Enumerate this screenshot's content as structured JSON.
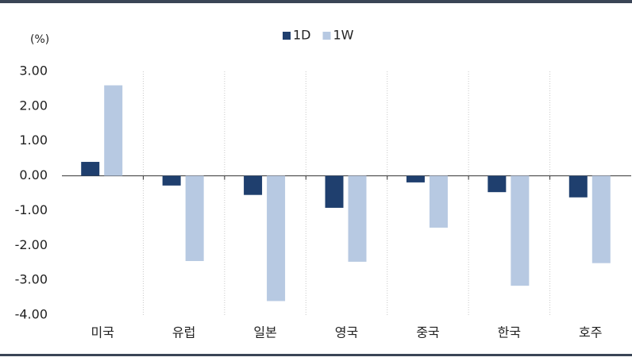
{
  "chart_data": {
    "type": "bar",
    "unit_label": "(%)",
    "categories": [
      "미국",
      "유럽",
      "일본",
      "영국",
      "중국",
      "한국",
      "호주"
    ],
    "series": [
      {
        "name": "1D",
        "color": "#1f3f6e",
        "values": [
          0.4,
          -0.28,
          -0.55,
          -0.92,
          -0.19,
          -0.47,
          -0.62
        ]
      },
      {
        "name": "1W",
        "color": "#b7c9e2",
        "values": [
          2.6,
          -2.45,
          -3.6,
          -2.47,
          -1.49,
          -3.16,
          -2.51
        ]
      }
    ],
    "ylim": [
      -4,
      3
    ],
    "yticks": [
      {
        "value": 3,
        "label": "3.00"
      },
      {
        "value": 2,
        "label": "2.00"
      },
      {
        "value": 1,
        "label": "1.00"
      },
      {
        "value": 0,
        "label": "0.00"
      },
      {
        "value": -1,
        "label": "-1.00"
      },
      {
        "value": -2,
        "label": "-2.00"
      },
      {
        "value": -3,
        "label": "-3.00"
      },
      {
        "value": -4,
        "label": "-4.00"
      }
    ],
    "legend": "top"
  }
}
